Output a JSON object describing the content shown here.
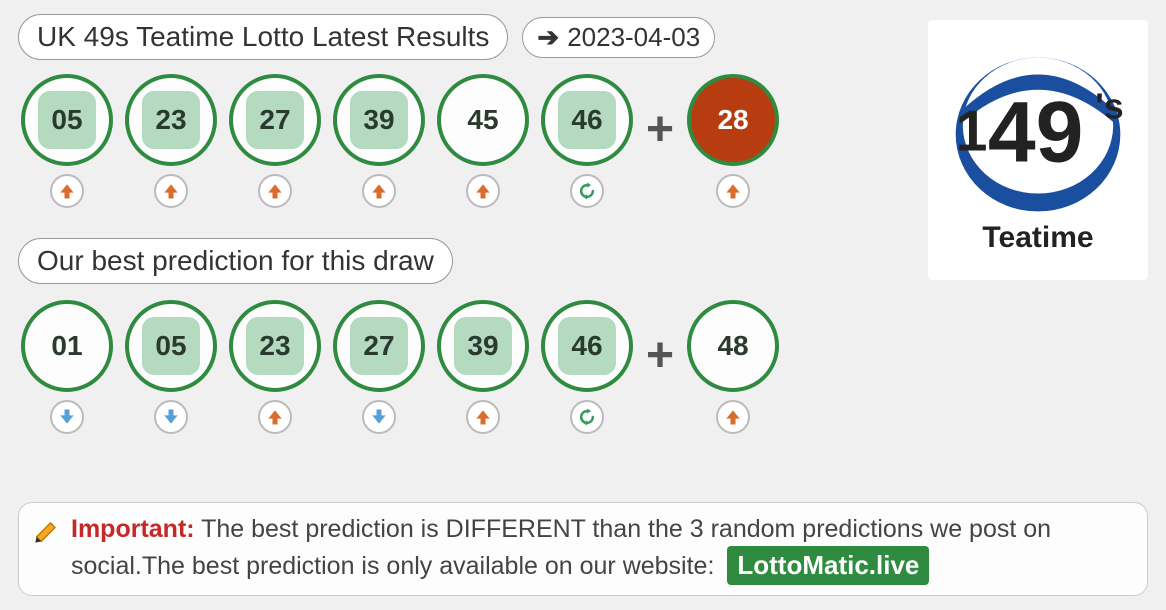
{
  "header": {
    "title": "UK 49s Teatime Lotto Latest Results",
    "date": "2023-04-03"
  },
  "results": {
    "balls": [
      {
        "num": "05",
        "hit": true,
        "trend": "up"
      },
      {
        "num": "23",
        "hit": true,
        "trend": "up"
      },
      {
        "num": "27",
        "hit": true,
        "trend": "up"
      },
      {
        "num": "39",
        "hit": true,
        "trend": "up"
      },
      {
        "num": "45",
        "hit": false,
        "trend": "up"
      },
      {
        "num": "46",
        "hit": true,
        "trend": "refresh"
      }
    ],
    "bonus": {
      "num": "28",
      "trend": "up"
    }
  },
  "prediction": {
    "title": "Our best prediction for this draw",
    "balls": [
      {
        "num": "01",
        "hit": false,
        "trend": "down"
      },
      {
        "num": "05",
        "hit": true,
        "trend": "down"
      },
      {
        "num": "23",
        "hit": true,
        "trend": "up"
      },
      {
        "num": "27",
        "hit": true,
        "trend": "down"
      },
      {
        "num": "39",
        "hit": true,
        "trend": "up"
      },
      {
        "num": "46",
        "hit": true,
        "trend": "refresh"
      }
    ],
    "bonus": {
      "num": "48",
      "trend": "up"
    }
  },
  "note": {
    "important_label": "Important:",
    "text_1": " The best prediction is DIFFERENT than the 3 random predictions we post on social.The best prediction is only available on our website: ",
    "brand": "LottoMatic.live"
  },
  "logo": {
    "caption": "Teatime",
    "big_text": "49",
    "apostrophe_s": "'s"
  },
  "colors": {
    "ball_border": "#2e8b3f",
    "ball_hit_fill": "#b4dbc0",
    "bonus_fill": "#b73c10",
    "arrow_up": "#d96b2c",
    "arrow_down": "#56a0d3",
    "refresh": "#3a9b5c",
    "brand_bg": "#2e8b3f"
  }
}
